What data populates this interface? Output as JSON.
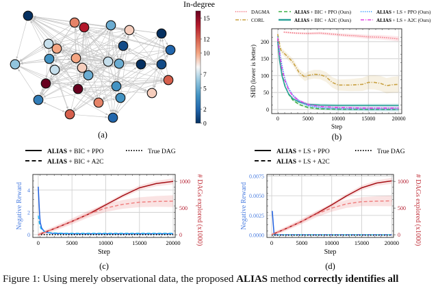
{
  "figure": {
    "caption_prefix": "Figure 1: Using merely observational data, the proposed ",
    "caption_method": "ALIAS",
    "caption_middle": " method ",
    "caption_emph": "correctly identifies all"
  },
  "chart_data": [
    {
      "id": "a",
      "type": "network",
      "panel_label": "(a)",
      "colorbar": {
        "title": "In-degree",
        "range": [
          0,
          16
        ],
        "ticks": [
          0,
          2,
          5,
          7,
          10,
          12,
          15
        ],
        "colormap": [
          "#053061",
          "#2166ac",
          "#4393c3",
          "#92c5de",
          "#f7f7f7",
          "#f4a582",
          "#d6604d",
          "#b2182b",
          "#67001f"
        ]
      },
      "nodes": [
        {
          "id": 1,
          "indegree": 0
        },
        {
          "id": 2,
          "indegree": 11
        },
        {
          "id": 3,
          "indegree": 14
        },
        {
          "id": 4,
          "indegree": 5
        },
        {
          "id": 5,
          "indegree": 9
        },
        {
          "id": 6,
          "indegree": 0
        },
        {
          "id": 7,
          "indegree": 7
        },
        {
          "id": 8,
          "indegree": 10
        },
        {
          "id": 9,
          "indegree": 1
        },
        {
          "id": 10,
          "indegree": 2
        },
        {
          "id": 11,
          "indegree": 6
        },
        {
          "id": 12,
          "indegree": 4
        },
        {
          "id": 13,
          "indegree": 10
        },
        {
          "id": 14,
          "indegree": 7
        },
        {
          "id": 15,
          "indegree": 5
        },
        {
          "id": 16,
          "indegree": 0
        },
        {
          "id": 17,
          "indegree": 1
        },
        {
          "id": 18,
          "indegree": 7
        },
        {
          "id": 19,
          "indegree": 9
        },
        {
          "id": 20,
          "indegree": 5
        },
        {
          "id": 21,
          "indegree": 12
        },
        {
          "id": 22,
          "indegree": 16
        },
        {
          "id": 23,
          "indegree": 16
        },
        {
          "id": 24,
          "indegree": 4
        },
        {
          "id": 25,
          "indegree": 9
        },
        {
          "id": 26,
          "indegree": 4
        },
        {
          "id": 27,
          "indegree": 3
        },
        {
          "id": 28,
          "indegree": 11
        },
        {
          "id": 29,
          "indegree": 12
        },
        {
          "id": 30,
          "indegree": 2
        }
      ]
    },
    {
      "id": "b",
      "type": "line",
      "panel_label": "(b)",
      "xlabel": "Step",
      "ylabel": "SHD (lower is better)",
      "xlim": [
        -1000,
        20500
      ],
      "ylim": [
        -12,
        238
      ],
      "xticks": [
        0,
        5000,
        10000,
        15000,
        20000
      ],
      "yticks": [
        0,
        50,
        100,
        150,
        200
      ],
      "grid": true,
      "legend": "top",
      "series": [
        {
          "name": "DAGMA",
          "bold": "",
          "color": "#f0606f",
          "style": "dotted",
          "x": [
            1000,
            3000,
            5000,
            7000,
            9000,
            11000,
            13000,
            15000,
            17000,
            19000,
            20000
          ],
          "y": [
            228,
            225,
            224,
            225,
            222,
            219,
            217,
            214,
            213,
            210,
            208
          ],
          "band": 8
        },
        {
          "name": "CORL",
          "bold": "",
          "color": "#c8a040",
          "style": "dashdot",
          "x": [
            0,
            500,
            1500,
            2500,
            3500,
            4500,
            5000,
            6000,
            7000,
            8000,
            9000,
            10000,
            11000,
            12000,
            13000,
            14000,
            15000,
            16000,
            17000,
            18000,
            19000,
            20000
          ],
          "y": [
            222,
            175,
            158,
            140,
            110,
            95,
            100,
            104,
            103,
            96,
            80,
            72,
            72,
            72,
            73,
            74,
            80,
            80,
            77,
            70,
            73,
            74
          ],
          "band": 25
        },
        {
          "name": " + BIC + PPO (Ours)",
          "bold": "ALIAS",
          "color": "#3cb043",
          "style": "dashed",
          "x": [
            0,
            300,
            700,
            1200,
            1800,
            2500,
            3500,
            5000,
            7000,
            10000,
            15000,
            20000
          ],
          "y": [
            205,
            150,
            105,
            70,
            45,
            28,
            15,
            6,
            2,
            1,
            0,
            0
          ],
          "band": 5
        },
        {
          "name": " + BIC + A2C (Ours)",
          "bold": "ALIAS",
          "color": "#2aa198",
          "style": "solid",
          "x": [
            0,
            300,
            700,
            1200,
            1800,
            2500,
            3500,
            5000,
            7000,
            10000,
            15000,
            20000
          ],
          "y": [
            200,
            145,
            100,
            68,
            46,
            32,
            22,
            15,
            13,
            12,
            12,
            12
          ],
          "band": 6
        },
        {
          "name": " + LS + PPO (Ours)",
          "bold": "ALIAS",
          "color": "#1e90ff",
          "style": "dotted",
          "x": [
            0,
            300,
            700,
            1200,
            1800,
            2500,
            3500,
            5000,
            7000,
            10000,
            15000,
            20000
          ],
          "y": [
            215,
            175,
            130,
            90,
            62,
            42,
            25,
            12,
            5,
            2,
            1,
            1
          ],
          "band": 7
        },
        {
          "name": " + LS + A2C (Ours)",
          "bold": "ALIAS",
          "color": "#e040e0",
          "style": "dashdot",
          "x": [
            0,
            300,
            700,
            1200,
            1800,
            2500,
            3500,
            5000,
            7000,
            10000,
            15000,
            20000
          ],
          "y": [
            210,
            165,
            120,
            85,
            58,
            40,
            26,
            15,
            9,
            6,
            4,
            4
          ],
          "band": 6
        }
      ]
    },
    {
      "id": "c",
      "type": "line",
      "panel_label": "(c)",
      "xlabel": "Step",
      "ylabel_left": "Negative Reward",
      "ylabel_right": "# DAGs explored (x1000)",
      "xlim": [
        -800,
        20300
      ],
      "ylim_left": [
        -0.25,
        5.4
      ],
      "ylim_right": [
        -50,
        1130
      ],
      "xticks": [
        0,
        5000,
        10000,
        15000,
        20000
      ],
      "yticks_left": [
        0,
        2,
        4
      ],
      "yticks_right": [
        0,
        500,
        1000
      ],
      "grid": true,
      "legend": [
        {
          "label_bold": "ALIAS",
          "label": " + BIC + PPO",
          "style": "solid"
        },
        {
          "label_bold": "ALIAS",
          "label": " + BIC + A2C",
          "style": "dashed"
        },
        {
          "label_bold": "",
          "label": "True DAG",
          "style": "dotted"
        }
      ],
      "series": [
        {
          "name": "reward PPO",
          "axis": "left",
          "color": "#1f5fe0",
          "style": "solid",
          "x": [
            0,
            100,
            200,
            300,
            500,
            800,
            1200,
            2000,
            3000,
            5000,
            10000,
            20000
          ],
          "y": [
            4.3,
            3.0,
            1.8,
            1.1,
            0.6,
            0.35,
            0.2,
            0.12,
            0.1,
            0.08,
            0.08,
            0.08
          ]
        },
        {
          "name": "reward A2C",
          "axis": "left",
          "color": "#22b8f0",
          "style": "dashed",
          "x": [
            0,
            100,
            200,
            400,
            700,
            1000,
            1500,
            2500,
            4000,
            8000,
            20000
          ],
          "y": [
            1.7,
            1.3,
            0.9,
            0.55,
            0.35,
            0.25,
            0.18,
            0.15,
            0.12,
            0.12,
            0.12
          ]
        },
        {
          "name": "true DAG",
          "axis": "left",
          "color": "#000000",
          "style": "dotted",
          "x": [
            0,
            20000
          ],
          "y": [
            0,
            0
          ]
        },
        {
          "name": "DAGs PPO",
          "axis": "right",
          "color": "#a50f15",
          "style": "solid",
          "x": [
            0,
            2500,
            5000,
            7500,
            10000,
            12500,
            15000,
            17500,
            20000
          ],
          "y": [
            0,
            120,
            250,
            390,
            560,
            730,
            880,
            960,
            1000
          ],
          "band": 60
        },
        {
          "name": "DAGs A2C",
          "axis": "right",
          "color": "#f08080",
          "style": "dashed",
          "x": [
            0,
            2500,
            5000,
            7500,
            10000,
            12500,
            15000,
            17500,
            20000
          ],
          "y": [
            0,
            120,
            250,
            390,
            500,
            570,
            610,
            625,
            630
          ],
          "band": 120
        }
      ]
    },
    {
      "id": "d",
      "type": "line",
      "panel_label": "(d)",
      "xlabel": "Step",
      "ylabel_left": "Negative Reward",
      "ylabel_right": "# DAGs explored (x1000)",
      "xlim": [
        -800,
        20300
      ],
      "ylim_left": [
        -0.0003,
        0.0077
      ],
      "ylim_right": [
        -50,
        1130
      ],
      "xticks": [
        0,
        5000,
        10000,
        15000,
        20000
      ],
      "yticks_left": [
        0.0,
        0.0025,
        0.005,
        0.0075
      ],
      "yticks_left_labels": [
        "0.0000",
        "0.0025",
        "0.0050",
        "0.0075"
      ],
      "yticks_right": [
        0,
        500,
        1000
      ],
      "grid": true,
      "legend": [
        {
          "label_bold": "ALIAS",
          "label": " + LS + PPO",
          "style": "solid"
        },
        {
          "label_bold": "ALIAS",
          "label": " + LS + A2C",
          "style": "dashed"
        },
        {
          "label_bold": "",
          "label": "True DAG",
          "style": "dotted"
        }
      ],
      "series": [
        {
          "name": "reward PPO",
          "axis": "left",
          "color": "#1f5fe0",
          "style": "solid",
          "x": [
            0,
            100,
            250,
            400,
            600,
            20000
          ],
          "y": [
            0.003,
            0.003,
            0.0015,
            0.0001,
            2e-05,
            2e-05
          ]
        },
        {
          "name": "reward A2C",
          "axis": "left",
          "color": "#22b8f0",
          "style": "dashed",
          "x": [
            0,
            20000
          ],
          "y": [
            3e-05,
            3e-05
          ]
        },
        {
          "name": "true DAG",
          "axis": "left",
          "color": "#000000",
          "style": "dotted",
          "x": [
            0,
            20000
          ],
          "y": [
            0,
            0
          ]
        },
        {
          "name": "DAGs PPO",
          "axis": "right",
          "color": "#a50f15",
          "style": "solid",
          "x": [
            0,
            2500,
            5000,
            7500,
            10000,
            12500,
            15000,
            17500,
            20000
          ],
          "y": [
            0,
            120,
            250,
            400,
            560,
            730,
            880,
            970,
            1010
          ],
          "band": 60
        },
        {
          "name": "DAGs A2C",
          "axis": "right",
          "color": "#f08080",
          "style": "dashed",
          "x": [
            0,
            2500,
            5000,
            7500,
            10000,
            12500,
            15000,
            17500,
            20000
          ],
          "y": [
            0,
            120,
            250,
            390,
            500,
            580,
            620,
            630,
            635
          ],
          "band": 110
        }
      ]
    }
  ]
}
